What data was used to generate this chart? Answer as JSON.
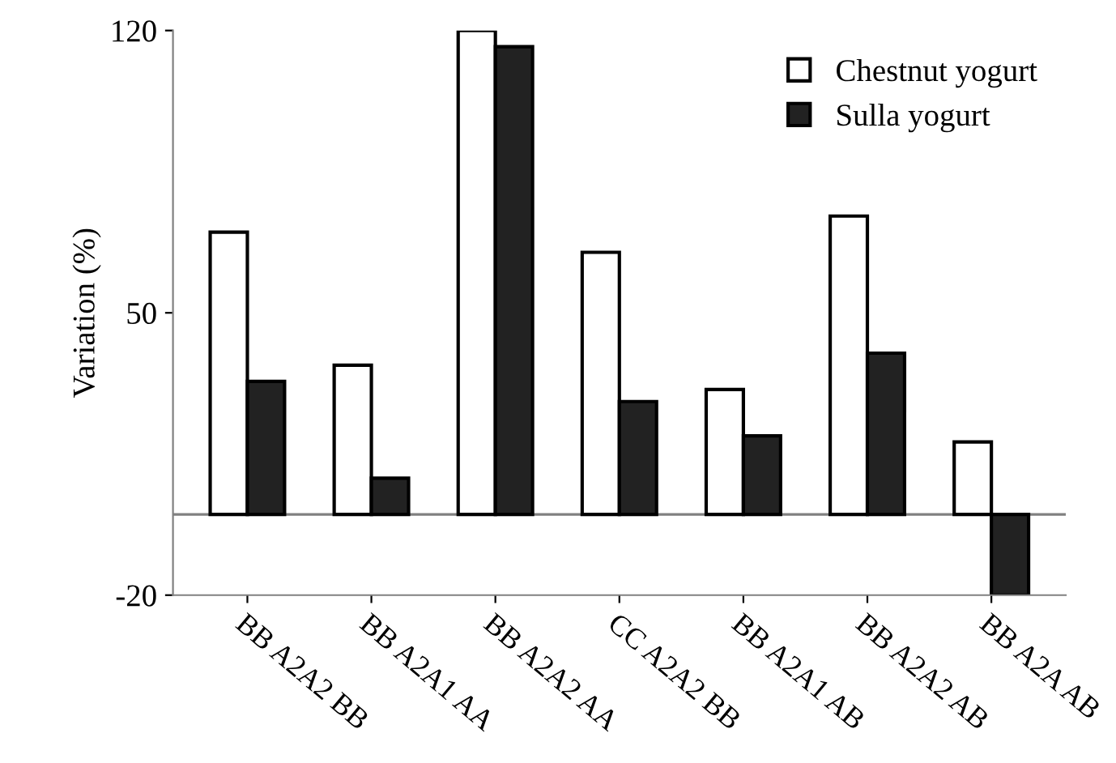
{
  "chart_data": {
    "type": "bar",
    "ylabel": "Variation (%)",
    "categories": [
      "BB A2A2 BB",
      "BB A2A1 AA",
      "BB A2A2 AA",
      "CC A2A2 BB",
      "BB A2A1 AB",
      "BB A2A2 AB",
      "BB A2A AB"
    ],
    "series": [
      {
        "name": "Chestnut yogurt",
        "color": "#ffffff",
        "values": [
          70,
          37,
          120,
          65,
          31,
          74,
          18
        ]
      },
      {
        "name": "Sulla yogurt",
        "color": "#222222",
        "values": [
          33,
          9,
          116,
          28,
          19.5,
          40,
          -20
        ]
      }
    ],
    "ylim": [
      -20,
      120
    ],
    "yticks": [
      -20,
      50,
      120
    ],
    "ref_lines": [
      {
        "axis": "y",
        "value": 0,
        "color": "#808080"
      }
    ],
    "grid": false,
    "legend": "top right"
  }
}
